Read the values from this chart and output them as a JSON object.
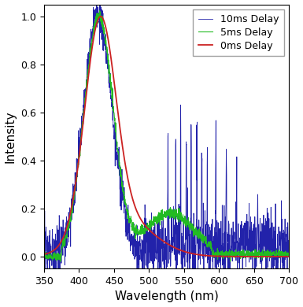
{
  "title": "",
  "xlabel": "Wavelength (nm)",
  "ylabel": "Intensity",
  "xlim": [
    350,
    700
  ],
  "ylim": [
    -0.05,
    1.05
  ],
  "xticks": [
    350,
    400,
    450,
    500,
    550,
    600,
    650,
    700
  ],
  "yticks": [
    0.0,
    0.2,
    0.4,
    0.6,
    0.8,
    1.0
  ],
  "legend": [
    "0ms Delay",
    "5ms Delay",
    "10ms Delay"
  ],
  "line_colors": [
    "#cc2222",
    "#22bb22",
    "#2222aa"
  ],
  "background_color": "#ffffff",
  "figsize": [
    3.85,
    3.9
  ],
  "dpi": 100
}
